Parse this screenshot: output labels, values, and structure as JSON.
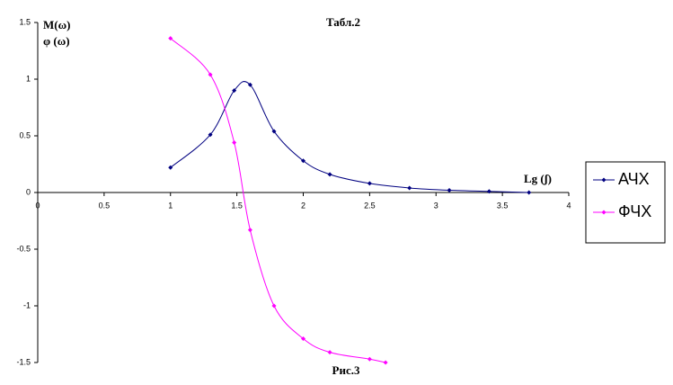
{
  "chart_data": {
    "type": "line",
    "title": "Табл.2",
    "y_label_lines": [
      "M(ω)",
      "φ (ω)"
    ],
    "x_label": "Lg (ʃ)",
    "caption": "Рис.3",
    "xlim": [
      0,
      4
    ],
    "xticks": [
      0,
      0.5,
      1,
      1.5,
      2,
      2.5,
      3,
      3.5,
      4
    ],
    "ylim": [
      -1.5,
      1.5
    ],
    "yticks": [
      -1.5,
      -1,
      -0.5,
      0,
      0.5,
      1,
      1.5
    ],
    "legend": "right",
    "series": [
      {
        "name": "АЧХ",
        "color": "#000080",
        "x": [
          1,
          1.3,
          1.48,
          1.6,
          1.78,
          2,
          2.2,
          2.5,
          2.8,
          3.1,
          3.4,
          3.7
        ],
        "values": [
          0.22,
          0.51,
          0.9,
          0.95,
          0.54,
          0.28,
          0.16,
          0.08,
          0.04,
          0.02,
          0.01,
          0
        ]
      },
      {
        "name": "ФЧХ",
        "color": "#ff00ff",
        "x": [
          1,
          1.3,
          1.48,
          1.6,
          1.78,
          2,
          2.2,
          2.5,
          2.62
        ],
        "values": [
          1.36,
          1.04,
          0.44,
          -0.33,
          -1.0,
          -1.29,
          -1.41,
          -1.47,
          -1.5
        ]
      }
    ]
  }
}
